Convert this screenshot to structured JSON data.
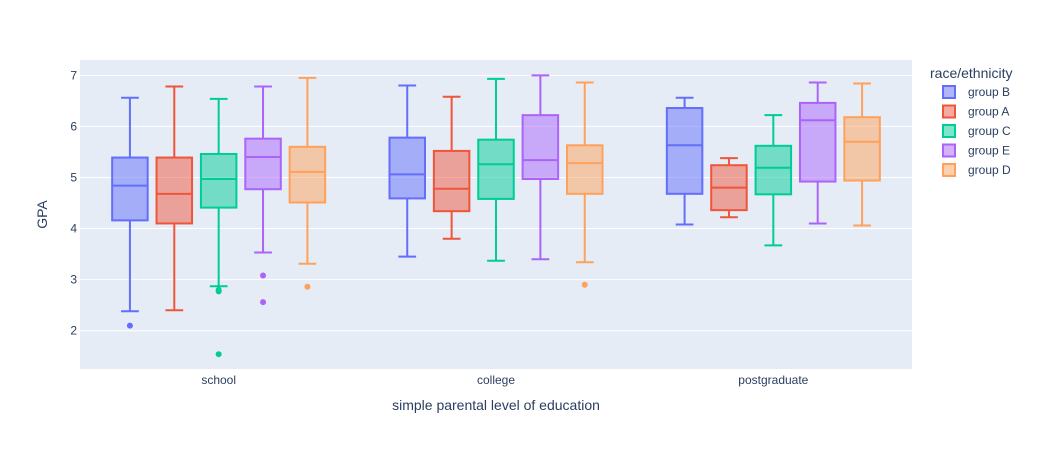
{
  "chart_data": {
    "type": "box",
    "xlabel": "simple parental level of education",
    "ylabel": "GPA",
    "categories": [
      "school",
      "college",
      "postgraduate"
    ],
    "ylim": [
      1.25,
      7.3
    ],
    "yticks": [
      2,
      3,
      4,
      5,
      6,
      7
    ],
    "grid": true,
    "legend": {
      "title": "race/ethnicity",
      "position": "right"
    },
    "series": [
      {
        "name": "group B",
        "color": "#636efa",
        "boxes": [
          {
            "category": "school",
            "min": 2.38,
            "q1": 4.16,
            "median": 4.84,
            "q3": 5.39,
            "max": 6.56,
            "outliers": [
              2.1
            ]
          },
          {
            "category": "college",
            "min": 3.45,
            "q1": 4.59,
            "median": 5.06,
            "q3": 5.78,
            "max": 6.8,
            "outliers": []
          },
          {
            "category": "postgraduate",
            "min": 4.08,
            "q1": 4.68,
            "median": 5.63,
            "q3": 6.36,
            "max": 6.56,
            "outliers": []
          }
        ]
      },
      {
        "name": "group A",
        "color": "#ef553b",
        "boxes": [
          {
            "category": "school",
            "min": 2.4,
            "q1": 4.1,
            "median": 4.68,
            "q3": 5.39,
            "max": 6.78,
            "outliers": []
          },
          {
            "category": "college",
            "min": 3.8,
            "q1": 4.34,
            "median": 4.78,
            "q3": 5.52,
            "max": 6.58,
            "outliers": []
          },
          {
            "category": "postgraduate",
            "min": 4.22,
            "q1": 4.36,
            "median": 4.8,
            "q3": 5.24,
            "max": 5.38,
            "outliers": []
          }
        ]
      },
      {
        "name": "group C",
        "color": "#00cc96",
        "boxes": [
          {
            "category": "school",
            "min": 2.87,
            "q1": 4.41,
            "median": 4.97,
            "q3": 5.46,
            "max": 6.54,
            "outliers": [
              2.77,
              2.8,
              1.54
            ]
          },
          {
            "category": "college",
            "min": 3.37,
            "q1": 4.58,
            "median": 5.26,
            "q3": 5.74,
            "max": 6.93,
            "outliers": []
          },
          {
            "category": "postgraduate",
            "min": 3.67,
            "q1": 4.67,
            "median": 5.19,
            "q3": 5.62,
            "max": 6.22,
            "outliers": []
          }
        ]
      },
      {
        "name": "group E",
        "color": "#ab63fa",
        "boxes": [
          {
            "category": "school",
            "min": 3.53,
            "q1": 4.77,
            "median": 5.4,
            "q3": 5.76,
            "max": 6.78,
            "outliers": [
              3.08,
              2.56
            ]
          },
          {
            "category": "college",
            "min": 3.4,
            "q1": 4.97,
            "median": 5.34,
            "q3": 6.22,
            "max": 7.0,
            "outliers": []
          },
          {
            "category": "postgraduate",
            "min": 4.1,
            "q1": 4.92,
            "median": 6.12,
            "q3": 6.46,
            "max": 6.86,
            "outliers": []
          }
        ]
      },
      {
        "name": "group D",
        "color": "#ffa15a",
        "boxes": [
          {
            "category": "school",
            "min": 3.31,
            "q1": 4.51,
            "median": 5.11,
            "q3": 5.6,
            "max": 6.95,
            "outliers": [
              2.86
            ]
          },
          {
            "category": "college",
            "min": 3.34,
            "q1": 4.68,
            "median": 5.28,
            "q3": 5.63,
            "max": 6.86,
            "outliers": [
              2.9
            ]
          },
          {
            "category": "postgraduate",
            "min": 4.06,
            "q1": 4.94,
            "median": 5.7,
            "q3": 6.18,
            "max": 6.84,
            "outliers": []
          }
        ]
      }
    ]
  }
}
